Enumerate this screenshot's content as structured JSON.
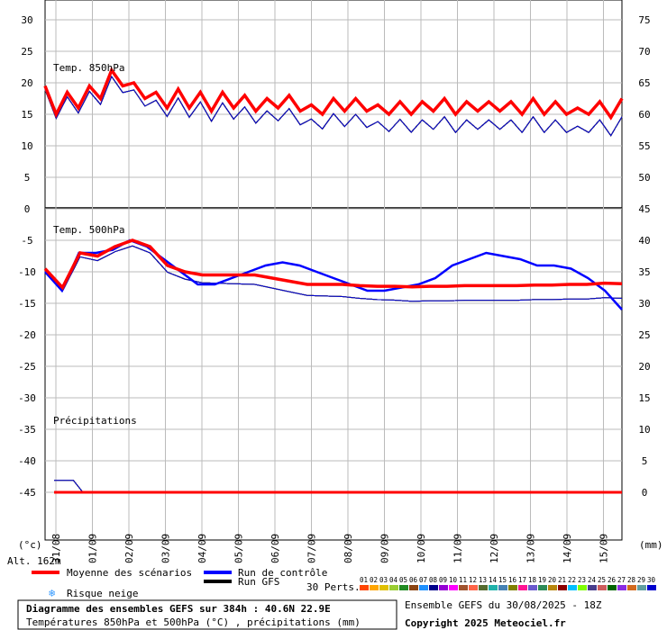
{
  "chart_data": {
    "type": "line",
    "dates": [
      "31/08",
      "01/09",
      "02/09",
      "03/09",
      "04/09",
      "05/09",
      "06/09",
      "07/09",
      "08/09",
      "09/09",
      "10/09",
      "11/09",
      "12/09",
      "13/09",
      "14/09",
      "15/09"
    ],
    "left_axis_ticks": [
      30,
      25,
      20,
      15,
      10,
      5,
      0,
      -5,
      -10,
      -15,
      -20,
      -25,
      -30,
      -35,
      -40,
      -45
    ],
    "right_axis_ticks_top": [
      75,
      70,
      65,
      60,
      55,
      50,
      45
    ],
    "right_axis_ticks_mid": [
      40,
      35,
      30,
      25,
      20,
      15,
      10,
      5,
      0
    ],
    "left_unit": "(°c)",
    "right_unit": "(mm)",
    "altitude": "Alt. 162m",
    "panels": {
      "t850": {
        "label": "Temp. 850hPa"
      },
      "t500": {
        "label": "Temp. 500hPa"
      },
      "precip": {
        "label": "Précipitations"
      }
    },
    "mean_t850": [
      19.5,
      15,
      18.5,
      16,
      19.5,
      17.5,
      22,
      19.5,
      20,
      17.5,
      18.5,
      16,
      19,
      16,
      18.5,
      15.5,
      18.5,
      16,
      18,
      15.5,
      17.5,
      16,
      18,
      15.5,
      16.5,
      15,
      17.5,
      15.5,
      17.5,
      15.5,
      16.5,
      15,
      17,
      15,
      17,
      15.5,
      17.5,
      15,
      17,
      15.5,
      17,
      15.5,
      17,
      15,
      17.5,
      15,
      17,
      15,
      16,
      15,
      17,
      14.5,
      17.5
    ],
    "mean_t500": [
      -9.5,
      -12.5,
      -7,
      -7.5,
      -6,
      -5,
      -6,
      -9,
      -10,
      -10.5,
      -10.5,
      -10.5,
      -10.5,
      -11,
      -11.5,
      -12,
      -12,
      -12,
      -12.2,
      -12.3,
      -12.3,
      -12.4,
      -12.3,
      -12.3,
      -12.2,
      -12.2,
      -12.2,
      -12.2,
      -12.1,
      -12.1,
      -12.0,
      -12.0,
      -11.8,
      -11.9
    ],
    "control_t500": [
      -10,
      -13,
      -7,
      -7,
      -6.5,
      -5,
      -6,
      -8,
      -10,
      -12,
      -12,
      -11,
      -10,
      -9,
      -8.5,
      -9,
      -10,
      -11,
      -12,
      -13,
      -13,
      -12.5,
      -12,
      -11,
      -9,
      -8,
      -7,
      -7.5,
      -8,
      -9,
      -9,
      -9.5,
      -11,
      -13,
      -16
    ],
    "legend": {
      "mean": "Moyenne des scénarios",
      "control": "Run de contrôle",
      "gfs": "Run GFS",
      "snow": "Risque neige",
      "perts_label": "30 Perts.",
      "pert_numbers": [
        "01",
        "02",
        "03",
        "04",
        "05",
        "06",
        "07",
        "08",
        "09",
        "10",
        "11",
        "12",
        "13",
        "14",
        "15",
        "16",
        "17",
        "18",
        "19",
        "20",
        "21",
        "22",
        "23",
        "24",
        "25",
        "26",
        "27",
        "28",
        "29",
        "30"
      ],
      "pert_colors": [
        "#ff4500",
        "#ffa500",
        "#e0c000",
        "#9acd32",
        "#228b22",
        "#8b4513",
        "#1e90ff",
        "#00008b",
        "#9400d3",
        "#ff00ff",
        "#a0522d",
        "#ff6347",
        "#556b2f",
        "#20b2aa",
        "#4682b4",
        "#808000",
        "#ff1493",
        "#6a5acd",
        "#2e8b57",
        "#b8860b",
        "#8b0000",
        "#00bfff",
        "#7fff00",
        "#483d8b",
        "#cd5c5c",
        "#006400",
        "#8a2be2",
        "#d2691e",
        "#5f9ea0",
        "#0000cd"
      ]
    },
    "title_box": {
      "line1": "Diagramme des ensembles GEFS sur 384h : 40.6N 22.9E",
      "line2": "Températures 850hPa et 500hPa (°C) , précipitations (mm)"
    },
    "run_info": "Ensemble GEFS du 30/08/2025 - 18Z",
    "copyright": "Copyright 2025 Meteociel.fr",
    "colors": {
      "mean": "#ff0000",
      "control": "#0000ff",
      "gfs": "#000000",
      "grid": "#bbbbbb",
      "snow": "#3399ff"
    }
  }
}
